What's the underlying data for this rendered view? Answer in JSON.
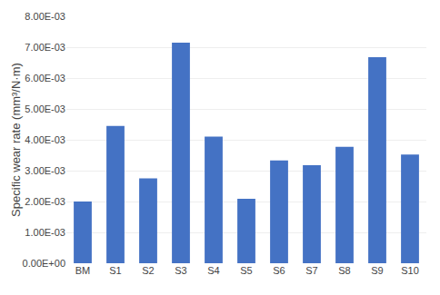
{
  "chart_data": {
    "type": "bar",
    "ylabel": "Specific wear rate (mm³/N·m)",
    "categories": [
      "BM",
      "S1",
      "S2",
      "S3",
      "S4",
      "S5",
      "S6",
      "S7",
      "S8",
      "S9",
      "S10"
    ],
    "values": [
      0.002,
      0.00445,
      0.00275,
      0.00715,
      0.0041,
      0.00209,
      0.00333,
      0.00318,
      0.00377,
      0.00668,
      0.00352
    ],
    "color": "#4472c4",
    "ylim": [
      0,
      0.008
    ],
    "yticks": [
      {
        "value": 0.0,
        "label": "0.00E+00"
      },
      {
        "value": 0.001,
        "label": "1.00E-03"
      },
      {
        "value": 0.002,
        "label": "2.00E-03"
      },
      {
        "value": 0.003,
        "label": "3.00E-03"
      },
      {
        "value": 0.004,
        "label": "4.00E-03"
      },
      {
        "value": 0.005,
        "label": "5.00E-03"
      },
      {
        "value": 0.006,
        "label": "6.00E-03"
      },
      {
        "value": 0.007,
        "label": "7.00E-03"
      },
      {
        "value": 0.008,
        "label": "8.00E-03"
      }
    ],
    "grid": true
  }
}
